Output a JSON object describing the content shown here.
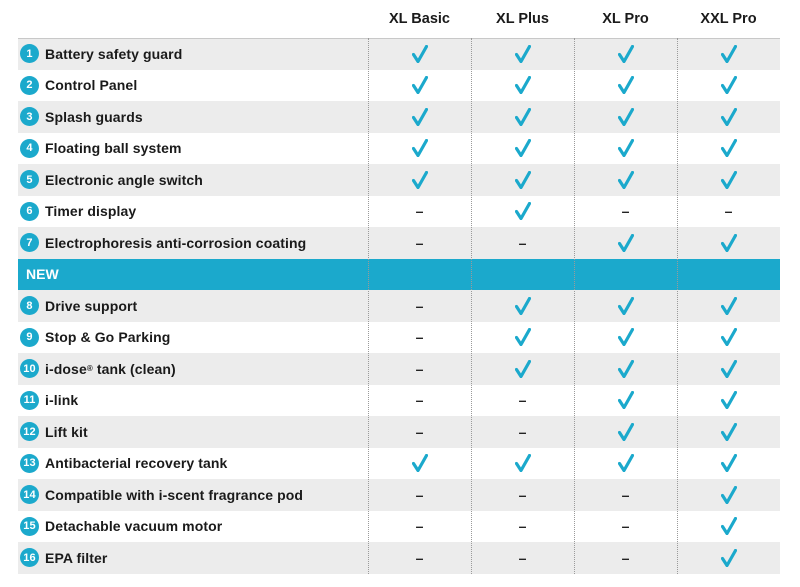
{
  "columns": [
    "XL Basic",
    "XL Plus",
    "XL Pro",
    "XXL Pro"
  ],
  "section_label": "NEW",
  "check_color": "#1ba9cc",
  "accent_color": "#1ba9cc",
  "symbols": {
    "check": "check-icon",
    "none": "–"
  },
  "rows_before": [
    {
      "num": "1",
      "label": "Battery safety guard",
      "values": [
        "check",
        "check",
        "check",
        "check"
      ]
    },
    {
      "num": "2",
      "label": "Control Panel",
      "values": [
        "check",
        "check",
        "check",
        "check"
      ]
    },
    {
      "num": "3",
      "label": "Splash guards",
      "values": [
        "check",
        "check",
        "check",
        "check"
      ]
    },
    {
      "num": "4",
      "label": "Floating ball system",
      "values": [
        "check",
        "check",
        "check",
        "check"
      ]
    },
    {
      "num": "5",
      "label": "Electronic angle switch",
      "values": [
        "check",
        "check",
        "check",
        "check"
      ]
    },
    {
      "num": "6",
      "label": "Timer display",
      "values": [
        "none",
        "check",
        "none",
        "none"
      ]
    },
    {
      "num": "7",
      "label": "Electrophoresis anti-corrosion coating",
      "values": [
        "none",
        "none",
        "check",
        "check"
      ]
    }
  ],
  "rows_after": [
    {
      "num": "8",
      "label": "Drive support",
      "values": [
        "none",
        "check",
        "check",
        "check"
      ]
    },
    {
      "num": "9",
      "label": "Stop & Go Parking",
      "values": [
        "none",
        "check",
        "check",
        "check"
      ]
    },
    {
      "num": "10",
      "label": "i-dose",
      "label_sup": "®",
      "label_suffix": " tank (clean)",
      "values": [
        "none",
        "check",
        "check",
        "check"
      ]
    },
    {
      "num": "11",
      "label": "i-link",
      "values": [
        "none",
        "none",
        "check",
        "check"
      ]
    },
    {
      "num": "12",
      "label": "Lift kit",
      "values": [
        "none",
        "none",
        "check",
        "check"
      ]
    },
    {
      "num": "13",
      "label": "Antibacterial recovery tank",
      "values": [
        "check",
        "check",
        "check",
        "check"
      ]
    },
    {
      "num": "14",
      "label": "Compatible with i-scent fragrance pod",
      "values": [
        "none",
        "none",
        "none",
        "check"
      ]
    },
    {
      "num": "15",
      "label": "Detachable vacuum motor",
      "values": [
        "none",
        "none",
        "none",
        "check"
      ]
    },
    {
      "num": "16",
      "label": "EPA filter",
      "values": [
        "none",
        "none",
        "none",
        "check"
      ]
    }
  ]
}
